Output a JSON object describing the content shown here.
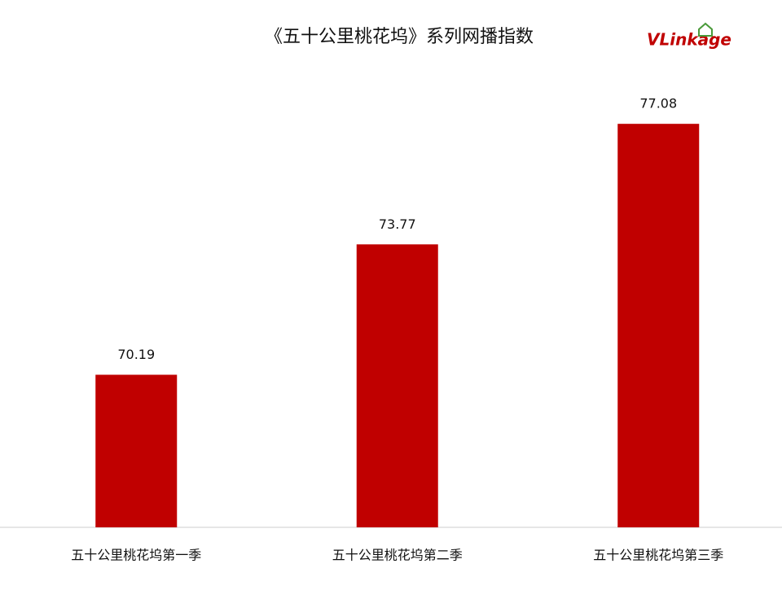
{
  "chart_data": {
    "type": "bar",
    "title": "《五十公里桃花坞》系列网播指数",
    "categories": [
      "五十公里桃花坞第一季",
      "五十公里桃花坞第二季",
      "五十公里桃花坞第三季"
    ],
    "values": [
      70.19,
      73.77,
      77.08
    ],
    "color": "#c00000",
    "ylim": [
      66,
      78
    ],
    "grid": false
  },
  "logo": "VLinkage"
}
